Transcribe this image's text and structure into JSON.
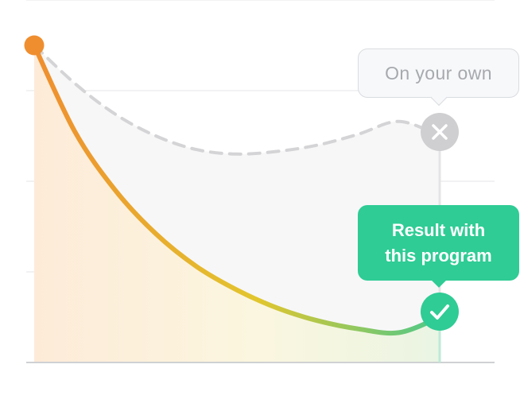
{
  "chart_data": {
    "type": "line",
    "title": "",
    "xlabel": "",
    "ylabel": "",
    "grid": true,
    "ylim": [
      0,
      4
    ],
    "xlim": [
      0,
      1
    ],
    "series": [
      {
        "key": "own",
        "style": "dashed",
        "color": "#d4d4d6",
        "points": [
          [
            0,
            3.5
          ],
          [
            0.1,
            3.08
          ],
          [
            0.2,
            2.74
          ],
          [
            0.3,
            2.5
          ],
          [
            0.4,
            2.35
          ],
          [
            0.5,
            2.3
          ],
          [
            0.6,
            2.33
          ],
          [
            0.7,
            2.4
          ],
          [
            0.8,
            2.52
          ],
          [
            0.9,
            2.66
          ],
          [
            1.0,
            2.4
          ]
        ]
      },
      {
        "key": "program",
        "style": "solid",
        "color_gradient": [
          "#ef8e2f",
          "#e2c62e",
          "#4cc98a"
        ],
        "points": [
          [
            0,
            3.5
          ],
          [
            0.1,
            2.55
          ],
          [
            0.2,
            1.9
          ],
          [
            0.3,
            1.42
          ],
          [
            0.4,
            1.06
          ],
          [
            0.5,
            0.8
          ],
          [
            0.6,
            0.6
          ],
          [
            0.7,
            0.46
          ],
          [
            0.8,
            0.37
          ],
          [
            0.9,
            0.33
          ],
          [
            1.0,
            0.5
          ]
        ]
      }
    ],
    "annotations": [
      {
        "series": "own",
        "label": "On your own",
        "icon": "close-icon",
        "color": "#cfcfd1"
      },
      {
        "series": "program",
        "label_lines": [
          "Result with",
          "this program"
        ],
        "icon": "check-icon",
        "color": "#2fcc95"
      }
    ],
    "start_marker_color": "#ef8e2f"
  }
}
